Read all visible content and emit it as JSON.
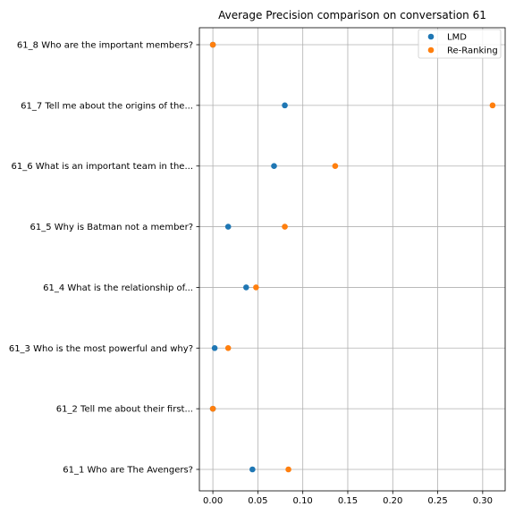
{
  "chart_data": {
    "type": "scatter",
    "title": "Average Precision comparison on conversation 61",
    "xlabel": "",
    "ylabel": "",
    "xlim": [
      -0.015,
      0.325
    ],
    "xticks": [
      "0.00",
      "0.05",
      "0.10",
      "0.15",
      "0.20",
      "0.25",
      "0.30"
    ],
    "xtick_values": [
      0.0,
      0.05,
      0.1,
      0.15,
      0.2,
      0.25,
      0.3
    ],
    "grid": true,
    "legend_position": "top-right",
    "categories": [
      "61_1 Who are The Avengers?",
      "61_2 Tell me about their first...",
      "61_3 Who is the most powerful and why?",
      "61_4 What is the relationship of...",
      "61_5 Why is Batman not a member?",
      "61_6 What is an important team in the...",
      "61_7 Tell me about the origins of the...",
      "61_8 Who are the important members?"
    ],
    "series": [
      {
        "name": "LMD",
        "color": "#1f77b4",
        "values": [
          0.044,
          0.0,
          0.002,
          0.037,
          0.017,
          0.068,
          0.08,
          0.0
        ]
      },
      {
        "name": "Re-Ranking",
        "color": "#ff7f0e",
        "values": [
          0.084,
          0.0,
          0.017,
          0.048,
          0.08,
          0.136,
          0.311,
          0.0
        ]
      }
    ]
  }
}
